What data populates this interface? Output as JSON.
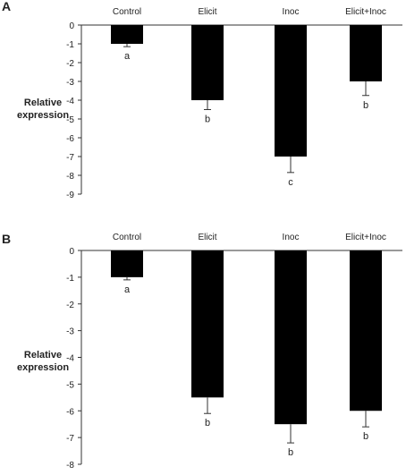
{
  "colors": {
    "bar": "#000000",
    "axis": "#333333",
    "text": "#222222",
    "background": "#ffffff"
  },
  "chart_data": [
    {
      "type": "bar",
      "panel_label": "A",
      "categories": [
        "Control",
        "Elicit",
        "Inoc",
        "Elicit+Inoc"
      ],
      "values": [
        -1,
        -4,
        -7,
        -3
      ],
      "error_bars": [
        0.15,
        0.5,
        0.85,
        0.75
      ],
      "significance_letters": [
        "a",
        "b",
        "c",
        "b"
      ],
      "ylabel": "Relative expression",
      "ylim": [
        -9,
        0
      ],
      "yticks": [
        0,
        -1,
        -2,
        -3,
        -4,
        -5,
        -6,
        -7,
        -8,
        -9
      ],
      "grid": false,
      "legend": "none"
    },
    {
      "type": "bar",
      "panel_label": "B",
      "categories": [
        "Control",
        "Elicit",
        "Inoc",
        "Elicit+Inoc"
      ],
      "values": [
        -1,
        -5.5,
        -6.5,
        -6
      ],
      "error_bars": [
        0.1,
        0.6,
        0.7,
        0.6
      ],
      "significance_letters": [
        "a",
        "b",
        "b",
        "b"
      ],
      "ylabel": "Relative expression",
      "ylim": [
        -8,
        0
      ],
      "yticks": [
        0,
        -1,
        -2,
        -3,
        -4,
        -5,
        -6,
        -7,
        -8
      ],
      "grid": false,
      "legend": "none"
    }
  ]
}
